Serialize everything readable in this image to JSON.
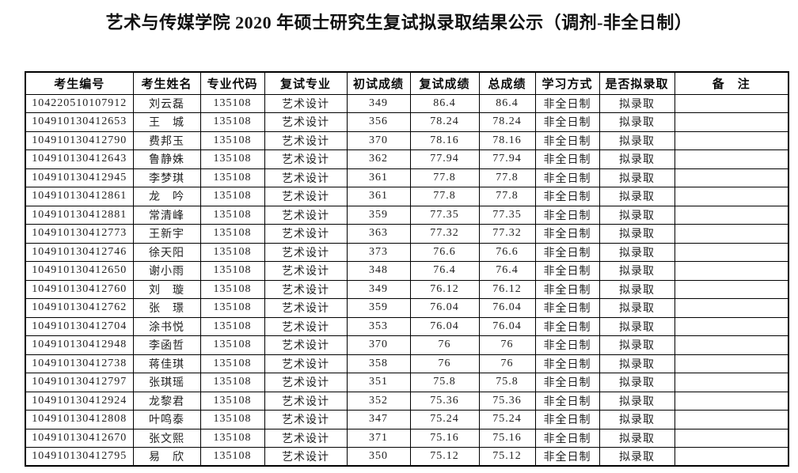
{
  "title": "艺术与传媒学院 2020 年硕士研究生复试拟录取结果公示（调剂-非全日制）",
  "colors": {
    "background": "#ffffff",
    "text": "#1a1a1a",
    "table_border": "#000000"
  },
  "table": {
    "columns": [
      "考生编号",
      "考生姓名",
      "专业代码",
      "复试专业",
      "初试成绩",
      "复试成绩",
      "总成绩",
      "学习方式",
      "是否拟录取",
      "备　注"
    ],
    "column_keys": [
      "candidate-id",
      "name",
      "major-code",
      "retest-major",
      "initial-score",
      "retest-score",
      "total-score",
      "study-mode",
      "admission-status",
      "remarks"
    ],
    "rows": [
      [
        "104220510107912",
        "刘云磊",
        "135108",
        "艺术设计",
        "349",
        "86.4",
        "86.4",
        "非全日制",
        "拟录取",
        ""
      ],
      [
        "104910130412653",
        "王　城",
        "135108",
        "艺术设计",
        "356",
        "78.24",
        "78.24",
        "非全日制",
        "拟录取",
        ""
      ],
      [
        "104910130412790",
        "费邦玉",
        "135108",
        "艺术设计",
        "370",
        "78.16",
        "78.16",
        "非全日制",
        "拟录取",
        ""
      ],
      [
        "104910130412643",
        "鲁静姝",
        "135108",
        "艺术设计",
        "362",
        "77.94",
        "77.94",
        "非全日制",
        "拟录取",
        ""
      ],
      [
        "104910130412945",
        "李梦琪",
        "135108",
        "艺术设计",
        "361",
        "77.8",
        "77.8",
        "非全日制",
        "拟录取",
        ""
      ],
      [
        "104910130412861",
        "龙　吟",
        "135108",
        "艺术设计",
        "361",
        "77.8",
        "77.8",
        "非全日制",
        "拟录取",
        ""
      ],
      [
        "104910130412881",
        "常清峰",
        "135108",
        "艺术设计",
        "359",
        "77.35",
        "77.35",
        "非全日制",
        "拟录取",
        ""
      ],
      [
        "104910130412773",
        "王新宇",
        "135108",
        "艺术设计",
        "363",
        "77.32",
        "77.32",
        "非全日制",
        "拟录取",
        ""
      ],
      [
        "104910130412746",
        "徐天阳",
        "135108",
        "艺术设计",
        "373",
        "76.6",
        "76.6",
        "非全日制",
        "拟录取",
        ""
      ],
      [
        "104910130412650",
        "谢小雨",
        "135108",
        "艺术设计",
        "348",
        "76.4",
        "76.4",
        "非全日制",
        "拟录取",
        ""
      ],
      [
        "104910130412760",
        "刘　璇",
        "135108",
        "艺术设计",
        "349",
        "76.12",
        "76.12",
        "非全日制",
        "拟录取",
        ""
      ],
      [
        "104910130412762",
        "张　璟",
        "135108",
        "艺术设计",
        "359",
        "76.04",
        "76.04",
        "非全日制",
        "拟录取",
        ""
      ],
      [
        "104910130412704",
        "涂书悦",
        "135108",
        "艺术设计",
        "353",
        "76.04",
        "76.04",
        "非全日制",
        "拟录取",
        ""
      ],
      [
        "104910130412948",
        "李函哲",
        "135108",
        "艺术设计",
        "370",
        "76",
        "76",
        "非全日制",
        "拟录取",
        ""
      ],
      [
        "104910130412738",
        "蒋佳琪",
        "135108",
        "艺术设计",
        "358",
        "76",
        "76",
        "非全日制",
        "拟录取",
        ""
      ],
      [
        "104910130412797",
        "张琪瑶",
        "135108",
        "艺术设计",
        "351",
        "75.8",
        "75.8",
        "非全日制",
        "拟录取",
        ""
      ],
      [
        "104910130412924",
        "龙黎君",
        "135108",
        "艺术设计",
        "352",
        "75.36",
        "75.36",
        "非全日制",
        "拟录取",
        ""
      ],
      [
        "104910130412808",
        "叶鸣泰",
        "135108",
        "艺术设计",
        "347",
        "75.24",
        "75.24",
        "非全日制",
        "拟录取",
        ""
      ],
      [
        "104910130412670",
        "张文熙",
        "135108",
        "艺术设计",
        "371",
        "75.16",
        "75.16",
        "非全日制",
        "拟录取",
        ""
      ],
      [
        "104910130412795",
        "易　欣",
        "135108",
        "艺术设计",
        "350",
        "75.12",
        "75.12",
        "非全日制",
        "拟录取",
        ""
      ]
    ]
  }
}
